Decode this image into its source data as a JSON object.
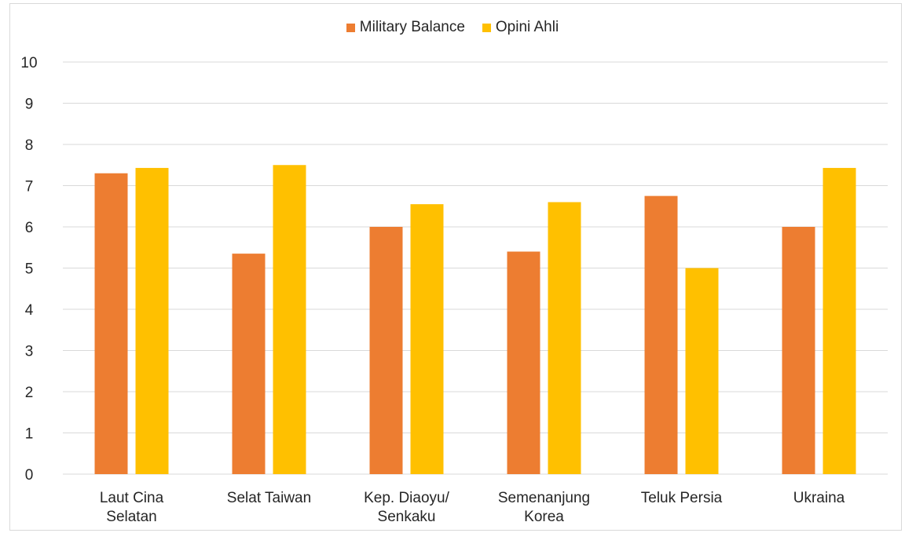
{
  "chart_data": {
    "type": "bar",
    "categories": [
      [
        "Laut Cina",
        "Selatan"
      ],
      [
        "Selat Taiwan"
      ],
      [
        "Kep. Diaoyu/",
        "Senkaku"
      ],
      [
        "Semenanjung",
        "Korea"
      ],
      [
        "Teluk Persia"
      ],
      [
        "Ukraina"
      ]
    ],
    "series": [
      {
        "name": "Military Balance",
        "color": "#ED7D31",
        "values": [
          7.3,
          5.35,
          6.0,
          5.4,
          6.75,
          6.0
        ]
      },
      {
        "name": "Opini Ahli",
        "color": "#FFC000",
        "values": [
          7.43,
          7.5,
          6.55,
          6.6,
          5.0,
          7.43
        ]
      }
    ],
    "ylim": [
      0,
      10
    ],
    "yticks": [
      0,
      1,
      2,
      3,
      4,
      5,
      6,
      7,
      8,
      9,
      10
    ],
    "grid": true,
    "legend_position": "top-center",
    "title": "",
    "xlabel": "",
    "ylabel": ""
  }
}
